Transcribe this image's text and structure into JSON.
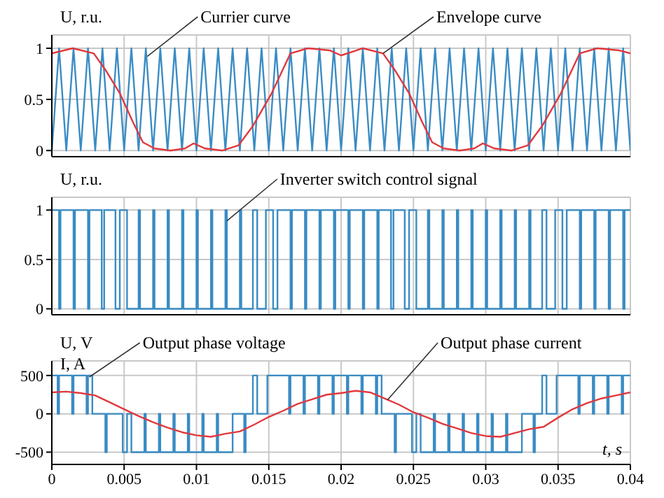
{
  "chart_data": [
    {
      "type": "line",
      "ylabel": "U, r.u.",
      "xlim": [
        0,
        0.04
      ],
      "ylim": [
        -0.06,
        1.13
      ],
      "xticks": [
        0,
        0.005,
        0.01,
        0.015,
        0.02,
        0.025,
        0.03,
        0.035,
        0.04
      ],
      "yticks": [
        0,
        0.5,
        1
      ],
      "grid": true,
      "tick_labels": "y",
      "annotations": [
        {
          "text": "Currier curve",
          "x": 0.0066,
          "y": 0.92
        },
        {
          "text": "Envelope curve",
          "x": 0.0229,
          "y": 0.95
        }
      ],
      "series": [
        {
          "color": "#3a8cc4",
          "x": [
            0,
            0.0005,
            0.001,
            0.0015,
            0.002,
            0.0025,
            0.003,
            0.0035,
            0.004,
            0.0045,
            0.005,
            0.0055,
            0.006,
            0.0065,
            0.007,
            0.0075,
            0.008,
            0.0085,
            0.009,
            0.0095,
            0.01,
            0.0105,
            0.011,
            0.0115,
            0.012,
            0.0125,
            0.013,
            0.0135,
            0.014,
            0.0145,
            0.015,
            0.0155,
            0.016,
            0.0165,
            0.017,
            0.0175,
            0.018,
            0.0185,
            0.019,
            0.0195,
            0.02,
            0.0205,
            0.021,
            0.0215,
            0.022,
            0.0225,
            0.023,
            0.0235,
            0.024,
            0.0245,
            0.025,
            0.0255,
            0.026,
            0.0265,
            0.027,
            0.0275,
            0.028,
            0.0285,
            0.029,
            0.0295,
            0.03,
            0.0305,
            0.031,
            0.0315,
            0.032,
            0.0325,
            0.033,
            0.0335,
            0.034,
            0.0345,
            0.035,
            0.0355,
            0.036,
            0.0365,
            0.037,
            0.0375,
            0.038,
            0.0385,
            0.039,
            0.0395,
            0.04
          ],
          "values": [
            0,
            1,
            0,
            1,
            0,
            1,
            0,
            1,
            0,
            1,
            0,
            1,
            0,
            1,
            0,
            1,
            0,
            1,
            0,
            1,
            0,
            1,
            0,
            1,
            0,
            1,
            0,
            1,
            0,
            1,
            0,
            1,
            0,
            1,
            0,
            1,
            0,
            1,
            0,
            1,
            0,
            1,
            0,
            1,
            0,
            1,
            0,
            1,
            0,
            1,
            0,
            1,
            0,
            1,
            0,
            1,
            0,
            1,
            0,
            1,
            0,
            1,
            0,
            1,
            0,
            1,
            0,
            1,
            0,
            1,
            0,
            1,
            0,
            1,
            0,
            1,
            0,
            1,
            0,
            1,
            0
          ]
        },
        {
          "color": "#e0393e",
          "x": [
            0,
            0.00145,
            0.0029,
            0.0037,
            0.0047,
            0.0056,
            0.0063,
            0.0071,
            0.0082,
            0.0092,
            0.0098,
            0.0106,
            0.0118,
            0.0129,
            0.0139,
            0.0152,
            0.0165,
            0.0177,
            0.0192,
            0.02,
            0.0215,
            0.0229,
            0.0237,
            0.0247,
            0.0256,
            0.0263,
            0.0271,
            0.0282,
            0.0292,
            0.0298,
            0.0306,
            0.0318,
            0.0329,
            0.0339,
            0.0352,
            0.0365,
            0.0377,
            0.0392,
            0.04
          ],
          "values": [
            0.95,
            1,
            0.95,
            0.79,
            0.56,
            0.28,
            0.08,
            0.02,
            0,
            0.02,
            0.07,
            0.02,
            0,
            0.05,
            0.24,
            0.56,
            0.95,
            1,
            0.98,
            0.93,
            1,
            0.95,
            0.79,
            0.56,
            0.28,
            0.08,
            0.02,
            0,
            0.02,
            0.07,
            0.02,
            0,
            0.05,
            0.24,
            0.56,
            0.95,
            1,
            0.98,
            0.95
          ]
        }
      ]
    },
    {
      "type": "step",
      "ylabel": "U, r.u.",
      "xlim": [
        0,
        0.04
      ],
      "ylim": [
        -0.06,
        1.13
      ],
      "xticks": [
        0,
        0.005,
        0.01,
        0.015,
        0.02,
        0.025,
        0.03,
        0.035,
        0.04
      ],
      "yticks": [
        0,
        0.5,
        1
      ],
      "grid": true,
      "tick_labels": "y",
      "annotations": [
        {
          "text": "Inverter switch control signal",
          "x": 0.0121,
          "y": 0.89
        }
      ],
      "series": [
        {
          "color": "#3a8cc4",
          "x": [
            0,
            0.0005,
            0.0006,
            0.0015,
            0.0016,
            0.0025,
            0.0026,
            0.00345,
            0.00362,
            0.0044,
            0.0047,
            0.0052,
            0.006,
            0.0061,
            0.007,
            0.0071,
            0.008,
            0.0081,
            0.009,
            0.0091,
            0.01,
            0.0101,
            0.011,
            0.0111,
            0.012,
            0.0121,
            0.013,
            0.0131,
            0.0139,
            0.0142,
            0.0148,
            0.0153,
            0.0156,
            0.0165,
            0.0166,
            0.0175,
            0.0176,
            0.0185,
            0.0186,
            0.0195,
            0.0196,
            0.0205,
            0.0206,
            0.0215,
            0.0216,
            0.0225,
            0.0226,
            0.02345,
            0.02362,
            0.0244,
            0.0247,
            0.0252,
            0.026,
            0.0261,
            0.027,
            0.0271,
            0.028,
            0.0281,
            0.029,
            0.0291,
            0.03,
            0.0301,
            0.031,
            0.0311,
            0.032,
            0.0321,
            0.033,
            0.0331,
            0.0339,
            0.0342,
            0.0348,
            0.0353,
            0.0356,
            0.0365,
            0.0366,
            0.0375,
            0.0376,
            0.0385,
            0.0386,
            0.0395,
            0.0396,
            0.04
          ],
          "values": [
            1,
            0,
            1,
            0,
            1,
            0,
            1,
            0,
            1,
            0,
            1,
            0,
            1,
            0,
            1,
            0,
            1,
            0,
            1,
            0,
            1,
            0,
            1,
            0,
            1,
            0,
            1,
            0,
            1,
            0,
            1,
            0,
            1,
            0,
            1,
            0,
            1,
            0,
            1,
            0,
            1,
            0,
            1,
            0,
            1,
            0,
            1,
            0,
            1,
            0,
            1,
            0,
            1,
            0,
            1,
            0,
            1,
            0,
            1,
            0,
            1,
            0,
            1,
            0,
            1,
            0,
            1,
            0,
            1,
            0,
            1,
            0,
            1,
            0,
            1,
            0,
            1,
            0,
            1,
            0,
            1,
            1
          ]
        }
      ]
    },
    {
      "type": "line",
      "ylabel": "U, V\nI, A",
      "xlabel": "t, s",
      "xlim": [
        0,
        0.04
      ],
      "ylim": [
        -660,
        690
      ],
      "xticks": [
        0,
        0.005,
        0.01,
        0.015,
        0.02,
        0.025,
        0.03,
        0.035,
        0.04
      ],
      "yticks": [
        -500,
        0,
        500
      ],
      "grid": true,
      "annotations": [
        {
          "text": "Output phase voltage",
          "x": 0.0026,
          "y": 480
        },
        {
          "text": "Output phase current",
          "x": 0.0232,
          "y": 180
        }
      ],
      "series": [
        {
          "type": "step",
          "color": "#3a8cc4",
          "x": [
            0,
            0.0004,
            0.0005,
            0.0014,
            0.0015,
            0.0024,
            0.0025,
            0.0028,
            0.0037,
            0.0038,
            0.0049,
            0.0052,
            0.0055,
            0.0064,
            0.0065,
            0.0074,
            0.0075,
            0.0084,
            0.0085,
            0.0094,
            0.0095,
            0.0104,
            0.0105,
            0.0114,
            0.0115,
            0.0125,
            0.0133,
            0.0134,
            0.0139,
            0.0142,
            0.0149,
            0.0164,
            0.0165,
            0.0174,
            0.0175,
            0.0184,
            0.0185,
            0.0194,
            0.0195,
            0.02,
            0.0204,
            0.0205,
            0.0214,
            0.0215,
            0.0224,
            0.0225,
            0.0228,
            0.0237,
            0.0238,
            0.0249,
            0.0252,
            0.0255,
            0.0264,
            0.0265,
            0.0274,
            0.0275,
            0.0284,
            0.0285,
            0.0294,
            0.0295,
            0.0304,
            0.0305,
            0.0314,
            0.0315,
            0.0325,
            0.0333,
            0.0334,
            0.0339,
            0.0342,
            0.0349,
            0.0364,
            0.0365,
            0.0374,
            0.0375,
            0.0384,
            0.0385,
            0.0394,
            0.0395,
            0.04
          ],
          "values": [
            500,
            0,
            500,
            0,
            500,
            0,
            500,
            0,
            -500,
            0,
            -500,
            0,
            -500,
            0,
            -500,
            0,
            -500,
            0,
            -500,
            0,
            -500,
            0,
            -500,
            0,
            -500,
            0,
            -500,
            0,
            500,
            0,
            500,
            0,
            500,
            0,
            500,
            0,
            500,
            0,
            500,
            500,
            0,
            500,
            0,
            500,
            0,
            500,
            0,
            -500,
            0,
            -500,
            0,
            -500,
            0,
            -500,
            0,
            -500,
            0,
            -500,
            0,
            -500,
            0,
            -500,
            0,
            -500,
            0,
            -500,
            0,
            500,
            0,
            500,
            0,
            500,
            0,
            500,
            0,
            500,
            0,
            500,
            500
          ]
        },
        {
          "color": "#e0393e",
          "x": [
            0,
            0.001,
            0.002,
            0.003,
            0.004,
            0.005,
            0.006,
            0.007,
            0.008,
            0.009,
            0.01,
            0.011,
            0.012,
            0.013,
            0.014,
            0.015,
            0.016,
            0.017,
            0.018,
            0.019,
            0.02,
            0.021,
            0.022,
            0.023,
            0.024,
            0.025,
            0.026,
            0.027,
            0.028,
            0.029,
            0.03,
            0.031,
            0.032,
            0.033,
            0.034,
            0.035,
            0.036,
            0.037,
            0.038,
            0.039,
            0.04
          ],
          "values": [
            280,
            290,
            270,
            240,
            150,
            60,
            -30,
            -110,
            -180,
            -240,
            -280,
            -300,
            -260,
            -230,
            -140,
            -40,
            40,
            130,
            190,
            250,
            270,
            300,
            280,
            200,
            120,
            20,
            -50,
            -130,
            -190,
            -250,
            -290,
            -300,
            -250,
            -200,
            -170,
            -50,
            60,
            140,
            200,
            240,
            280
          ]
        }
      ]
    }
  ]
}
